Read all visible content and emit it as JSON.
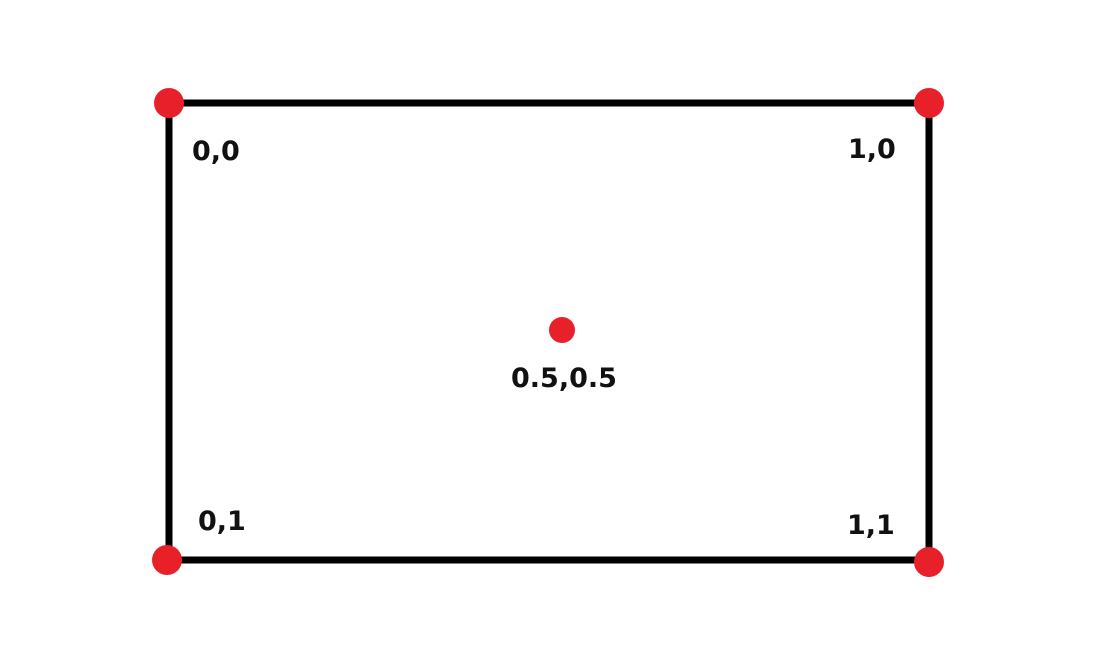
{
  "colors": {
    "outline": "#000000",
    "dot": "#e8202a",
    "label": "#111111"
  },
  "points": [
    {
      "id": "top-left",
      "label": "0,0"
    },
    {
      "id": "top-right",
      "label": "1,0"
    },
    {
      "id": "center",
      "label": "0.5,0.5"
    },
    {
      "id": "bottom-left",
      "label": "0,1"
    },
    {
      "id": "bottom-right",
      "label": "1,1"
    }
  ]
}
